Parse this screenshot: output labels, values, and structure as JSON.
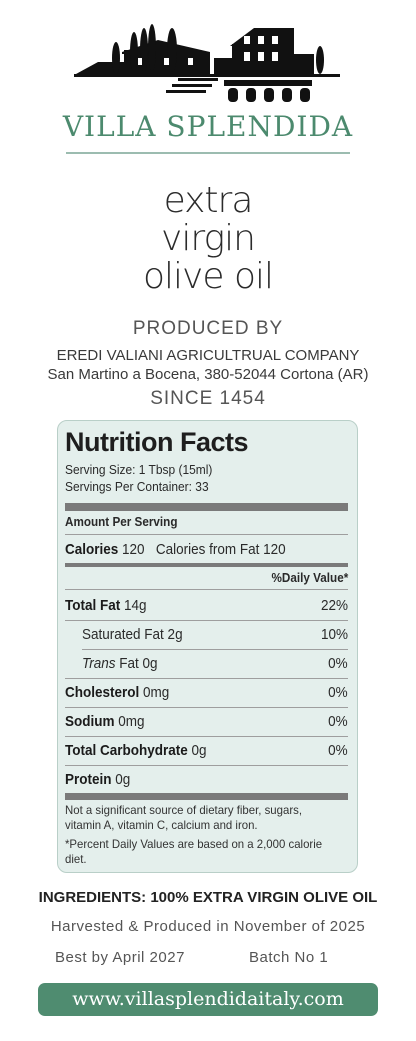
{
  "brand": {
    "name": "VILLA SPLENDIDA",
    "color": "#4c8a6e"
  },
  "product": {
    "line1": "extra",
    "line2": "virgin",
    "line3": "olive oil"
  },
  "producer": {
    "heading": "PRODUCED BY",
    "company": "EREDI VALIANI AGRICULTRUAL COMPANY",
    "address": "San Martino a Bocena, 380-52044 Cortona (AR)",
    "since": "SINCE 1454"
  },
  "nutrition": {
    "title": "Nutrition Facts",
    "serving_size": "Serving Size: 1 Tbsp (15ml)",
    "servings_per_container": "Servings Per Container: 33",
    "amount_per_serving": "Amount Per Serving",
    "calories_label": "Calories",
    "calories_value": "120",
    "calories_from_fat": "Calories from Fat 120",
    "daily_value_header": "%Daily Value*",
    "rows": [
      {
        "label": "Total Fat",
        "amount": "14g",
        "dv": "22%"
      },
      {
        "label": "Saturated Fat",
        "amount": "2g",
        "dv": "10%"
      },
      {
        "label": "Trans",
        "label_rest": "Fat",
        "amount": "0g",
        "dv": "0%"
      },
      {
        "label": "Cholesterol",
        "amount": "0mg",
        "dv": "0%"
      },
      {
        "label": "Sodium",
        "amount": "0mg",
        "dv": "0%"
      },
      {
        "label": "Total Carbohydrate",
        "amount": "0g",
        "dv": "0%"
      },
      {
        "label": "Protein",
        "amount": "0g",
        "dv": ""
      }
    ],
    "footnote1": "Not a significant source of dietary fiber, sugars, vitamin A, vitamin C, calcium and iron.",
    "footnote2": "*Percent Daily Values are based on a 2,000 calorie diet.",
    "panel_color": "#e4efec"
  },
  "ingredients": "INGREDIENTS: 100% EXTRA VIRGIN OLIVE OIL",
  "harvest": "Harvested & Produced in November of 2025",
  "best_by": "Best by April 2027",
  "batch": "Batch No 1",
  "website": {
    "text": "www.villasplendidaitaly.com",
    "color": "#4f8c70"
  }
}
